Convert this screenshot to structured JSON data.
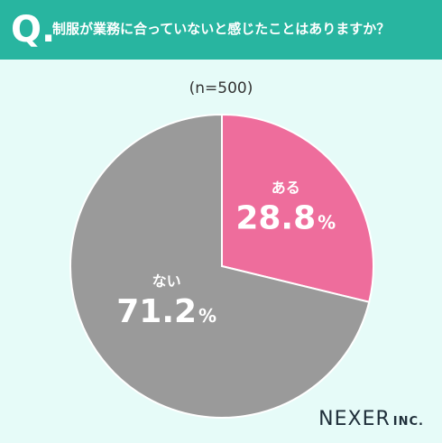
{
  "header": {
    "q_mark": "Q.",
    "question": "制服が業務に合っていないと感じたことはありますか？"
  },
  "sample_size": "(n=500)",
  "brand": {
    "main": "NEXER",
    "sub": "INC."
  },
  "colors": {
    "background": "#e6fbf8",
    "header": "#28b5a0",
    "aru": "#ee6d9c",
    "nai": "#9a9a9a"
  },
  "chart_data": {
    "type": "pie",
    "title": "制服が業務に合っていないと感じたことはありますか？",
    "n": 500,
    "slices": [
      {
        "label": "ある",
        "value": 28.8,
        "display": "28.8",
        "unit": "%",
        "color": "#ee6d9c"
      },
      {
        "label": "ない",
        "value": 71.2,
        "display": "71.2",
        "unit": "%",
        "color": "#9a9a9a"
      }
    ],
    "start": "12 o'clock",
    "direction": "clockwise"
  }
}
